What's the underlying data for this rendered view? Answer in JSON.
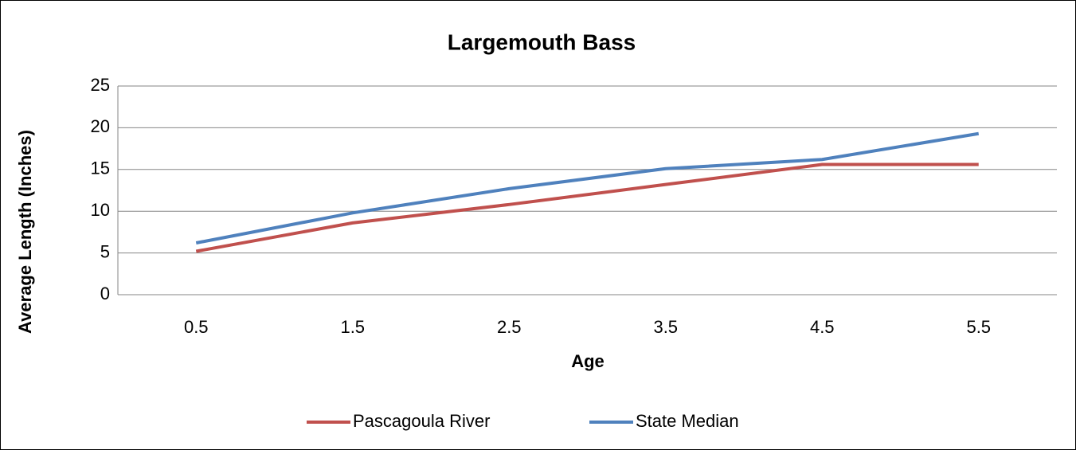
{
  "chart_data": {
    "type": "line",
    "title": "Largemouth Bass",
    "x_label": "Age",
    "y_label": "Average Length (Inches)",
    "categories": [
      "0.5",
      "1.5",
      "2.5",
      "3.5",
      "4.5",
      "5.5"
    ],
    "series": [
      {
        "name": "Pascagoula River",
        "color": "#c0504d",
        "values": [
          5.2,
          8.6,
          10.8,
          13.2,
          15.6,
          15.6
        ]
      },
      {
        "name": "State Median",
        "color": "#4f81bd",
        "values": [
          6.2,
          9.8,
          12.7,
          15.1,
          16.2,
          19.3
        ]
      }
    ],
    "ylim": [
      0,
      25
    ],
    "yticks": [
      0,
      5,
      10,
      15,
      20,
      25
    ],
    "grid": true,
    "legend": "bottom"
  }
}
